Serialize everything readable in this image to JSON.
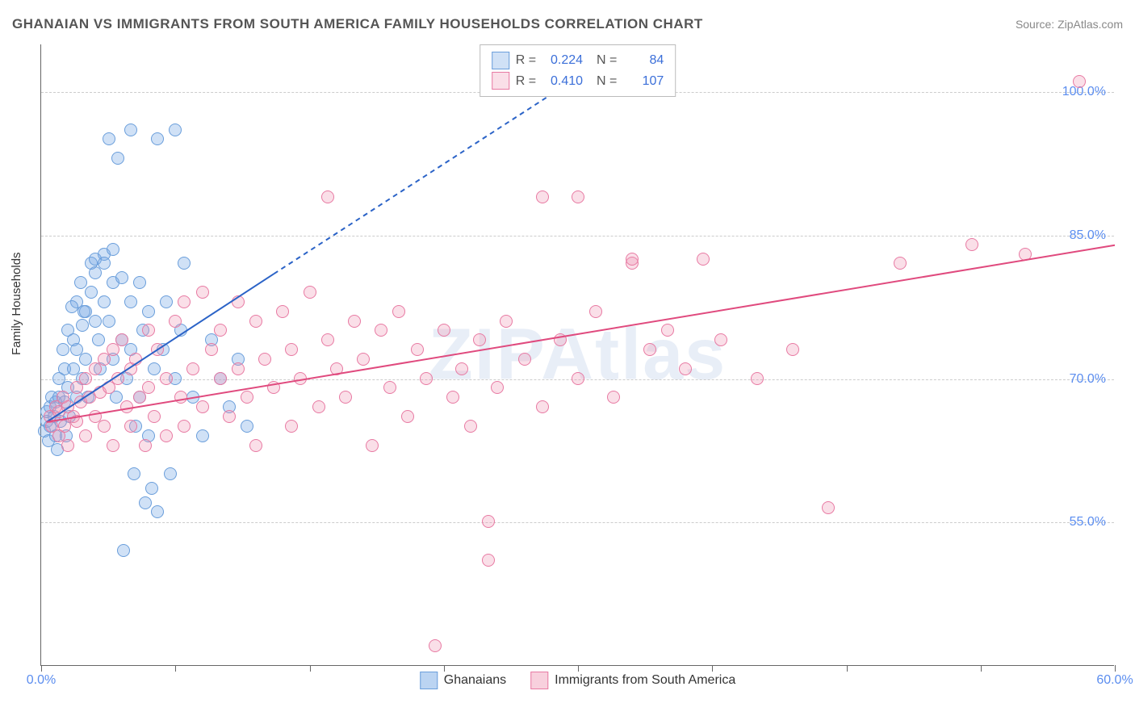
{
  "header": {
    "title": "GHANAIAN VS IMMIGRANTS FROM SOUTH AMERICA FAMILY HOUSEHOLDS CORRELATION CHART",
    "source": "Source: ZipAtlas.com"
  },
  "chart": {
    "type": "scatter",
    "ylabel": "Family Households",
    "watermark": "ZIPAtlas",
    "background_color": "#ffffff",
    "grid_color": "#cccccc",
    "axis_color": "#666666",
    "xlim": [
      0,
      60
    ],
    "ylim": [
      40,
      105
    ],
    "xticks": [
      0,
      7.5,
      15,
      22.5,
      30,
      37.5,
      45,
      52.5,
      60
    ],
    "xtick_labels": {
      "0": "0.0%",
      "60": "60.0%"
    },
    "yticks": [
      55,
      70,
      85,
      100
    ],
    "ytick_labels": {
      "55": "55.0%",
      "70": "70.0%",
      "85": "85.0%",
      "100": "100.0%"
    },
    "tick_label_color": "#5b8def",
    "tick_label_fontsize": 16,
    "marker_radius": 8,
    "marker_border_width": 1.5,
    "series": [
      {
        "name": "Ghanaians",
        "fill_color": "rgba(120,170,230,0.35)",
        "border_color": "#6a9edb",
        "R": "0.224",
        "N": "84",
        "trend": {
          "solid": [
            [
              0.3,
              65.5
            ],
            [
              13,
              81
            ]
          ],
          "dashed": [
            [
              13,
              81
            ],
            [
              32,
              104
            ]
          ],
          "color": "#2b63c7",
          "width": 2
        },
        "points": [
          [
            0.2,
            64.5
          ],
          [
            0.3,
            65.5
          ],
          [
            0.3,
            66.5
          ],
          [
            0.5,
            67
          ],
          [
            0.5,
            65
          ],
          [
            0.4,
            63.5
          ],
          [
            0.6,
            68
          ],
          [
            0.7,
            66
          ],
          [
            0.8,
            67.5
          ],
          [
            0.8,
            64
          ],
          [
            1,
            70
          ],
          [
            1,
            68
          ],
          [
            1.1,
            65.5
          ],
          [
            1.2,
            73
          ],
          [
            1.3,
            71
          ],
          [
            1.3,
            67.5
          ],
          [
            1.5,
            75
          ],
          [
            1.5,
            69
          ],
          [
            1.6,
            66
          ],
          [
            1.8,
            74
          ],
          [
            1.8,
            71
          ],
          [
            2,
            78
          ],
          [
            2,
            73
          ],
          [
            2,
            68
          ],
          [
            2.2,
            80
          ],
          [
            2.3,
            75.5
          ],
          [
            2.3,
            70
          ],
          [
            2.5,
            77
          ],
          [
            2.5,
            72
          ],
          [
            2.6,
            68
          ],
          [
            2.8,
            82
          ],
          [
            2.8,
            79
          ],
          [
            3,
            81
          ],
          [
            3,
            76
          ],
          [
            3.2,
            74
          ],
          [
            3.3,
            71
          ],
          [
            3.5,
            78
          ],
          [
            3.5,
            83
          ],
          [
            3.8,
            95
          ],
          [
            3.8,
            76
          ],
          [
            4,
            80
          ],
          [
            4,
            72
          ],
          [
            4.2,
            68
          ],
          [
            4.3,
            93
          ],
          [
            4.5,
            74
          ],
          [
            4.8,
            70
          ],
          [
            5,
            96
          ],
          [
            5,
            78
          ],
          [
            5,
            73
          ],
          [
            5.3,
            65
          ],
          [
            5.5,
            80
          ],
          [
            5.5,
            68
          ],
          [
            5.7,
            75
          ],
          [
            6,
            77
          ],
          [
            6,
            64
          ],
          [
            6.3,
            71
          ],
          [
            6.5,
            95
          ],
          [
            6.5,
            56
          ],
          [
            6.8,
            73
          ],
          [
            7,
            78
          ],
          [
            7.2,
            60
          ],
          [
            7.5,
            96
          ],
          [
            7.5,
            70
          ],
          [
            7.8,
            75
          ],
          [
            8,
            82
          ],
          [
            8.5,
            68
          ],
          [
            9,
            64
          ],
          [
            9.5,
            74
          ],
          [
            10,
            70
          ],
          [
            10.5,
            67
          ],
          [
            11,
            72
          ],
          [
            3,
            82.5
          ],
          [
            3.5,
            82
          ],
          [
            4,
            83.5
          ],
          [
            4.5,
            80.5
          ],
          [
            1.7,
            77.5
          ],
          [
            2.4,
            77
          ],
          [
            0.9,
            62.5
          ],
          [
            1.4,
            64
          ],
          [
            5.8,
            57
          ],
          [
            6.2,
            58.5
          ],
          [
            4.6,
            52
          ],
          [
            5.2,
            60
          ],
          [
            11.5,
            65
          ]
        ]
      },
      {
        "name": "Immigrants from South America",
        "fill_color": "rgba(240,150,180,0.30)",
        "border_color": "#e87aa3",
        "R": "0.410",
        "N": "107",
        "trend": {
          "solid": [
            [
              0.3,
              65.5
            ],
            [
              60,
              84
            ]
          ],
          "dashed": null,
          "color": "#e04a7e",
          "width": 2
        },
        "points": [
          [
            0.5,
            66
          ],
          [
            0.6,
            65
          ],
          [
            0.8,
            67
          ],
          [
            1,
            66.5
          ],
          [
            1,
            64
          ],
          [
            1.2,
            68
          ],
          [
            1.3,
            65
          ],
          [
            1.5,
            67
          ],
          [
            1.5,
            63
          ],
          [
            1.8,
            66
          ],
          [
            2,
            69
          ],
          [
            2,
            65.5
          ],
          [
            2.2,
            67.5
          ],
          [
            2.5,
            70
          ],
          [
            2.5,
            64
          ],
          [
            2.7,
            68
          ],
          [
            3,
            71
          ],
          [
            3,
            66
          ],
          [
            3.3,
            68.5
          ],
          [
            3.5,
            72
          ],
          [
            3.5,
            65
          ],
          [
            3.8,
            69
          ],
          [
            4,
            73
          ],
          [
            4,
            63
          ],
          [
            4.3,
            70
          ],
          [
            4.5,
            74
          ],
          [
            4.8,
            67
          ],
          [
            5,
            71
          ],
          [
            5,
            65
          ],
          [
            5.3,
            72
          ],
          [
            5.5,
            68
          ],
          [
            5.8,
            63
          ],
          [
            6,
            75
          ],
          [
            6,
            69
          ],
          [
            6.3,
            66
          ],
          [
            6.5,
            73
          ],
          [
            7,
            70
          ],
          [
            7,
            64
          ],
          [
            7.5,
            76
          ],
          [
            7.8,
            68
          ],
          [
            8,
            78
          ],
          [
            8,
            65
          ],
          [
            8.5,
            71
          ],
          [
            9,
            79
          ],
          [
            9,
            67
          ],
          [
            9.5,
            73
          ],
          [
            10,
            70
          ],
          [
            10,
            75
          ],
          [
            10.5,
            66
          ],
          [
            11,
            78
          ],
          [
            11,
            71
          ],
          [
            11.5,
            68
          ],
          [
            12,
            76
          ],
          [
            12,
            63
          ],
          [
            12.5,
            72
          ],
          [
            13,
            69
          ],
          [
            13.5,
            77
          ],
          [
            14,
            65
          ],
          [
            14,
            73
          ],
          [
            14.5,
            70
          ],
          [
            15,
            79
          ],
          [
            15.5,
            67
          ],
          [
            16,
            74
          ],
          [
            16,
            89
          ],
          [
            16.5,
            71
          ],
          [
            17,
            68
          ],
          [
            17.5,
            76
          ],
          [
            18,
            72
          ],
          [
            18.5,
            63
          ],
          [
            19,
            75
          ],
          [
            19.5,
            69
          ],
          [
            20,
            77
          ],
          [
            20.5,
            66
          ],
          [
            21,
            73
          ],
          [
            21.5,
            70
          ],
          [
            22,
            42
          ],
          [
            22.5,
            75
          ],
          [
            23,
            68
          ],
          [
            23.5,
            71
          ],
          [
            24,
            65
          ],
          [
            24.5,
            74
          ],
          [
            25,
            51
          ],
          [
            25,
            55
          ],
          [
            25.5,
            69
          ],
          [
            26,
            76
          ],
          [
            27,
            72
          ],
          [
            28,
            67
          ],
          [
            28,
            89
          ],
          [
            29,
            74
          ],
          [
            30,
            89
          ],
          [
            30,
            70
          ],
          [
            31,
            77
          ],
          [
            32,
            68
          ],
          [
            33,
            82
          ],
          [
            33,
            82.5
          ],
          [
            34,
            73
          ],
          [
            35,
            75
          ],
          [
            36,
            71
          ],
          [
            37,
            82.5
          ],
          [
            38,
            74
          ],
          [
            40,
            70
          ],
          [
            42,
            73
          ],
          [
            44,
            56.5
          ],
          [
            48,
            82
          ],
          [
            52,
            84
          ],
          [
            55,
            83
          ],
          [
            58,
            101
          ]
        ]
      }
    ]
  },
  "legend_bottom": [
    {
      "swatch_fill": "rgba(120,170,230,0.5)",
      "swatch_border": "#6a9edb",
      "label": "Ghanaians"
    },
    {
      "swatch_fill": "rgba(240,150,180,0.45)",
      "swatch_border": "#e87aa3",
      "label": "Immigrants from South America"
    }
  ]
}
